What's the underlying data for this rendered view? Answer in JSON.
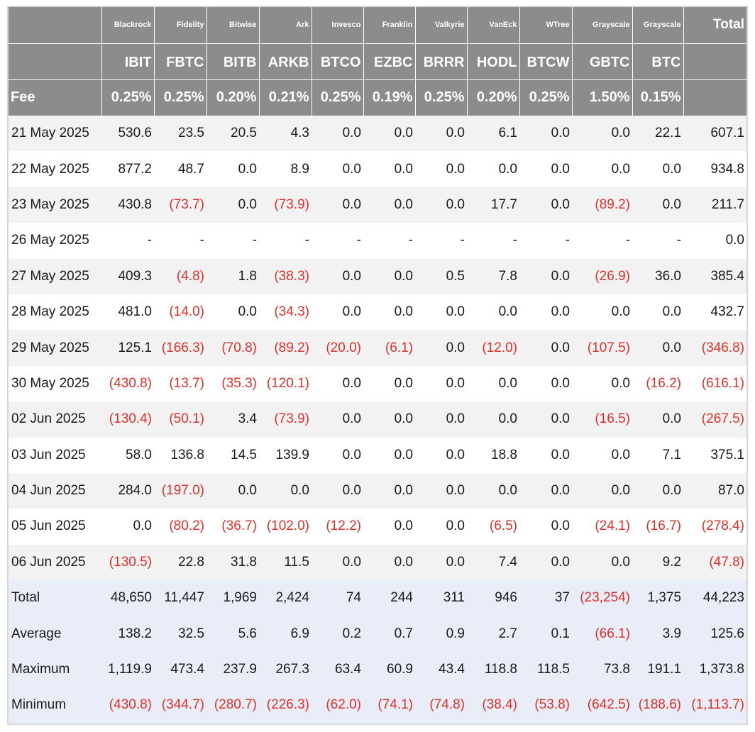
{
  "header": {
    "issuers": [
      "Blackrock",
      "Fidelity",
      "Bitwise",
      "Ark",
      "Invesco",
      "Franklin",
      "Valkyrie",
      "VanEck",
      "WTree",
      "Grayscale",
      "Grayscale"
    ],
    "total_label": "Total",
    "tickers": [
      "IBIT",
      "FBTC",
      "BITB",
      "ARKB",
      "BTCO",
      "EZBC",
      "BRRR",
      "HODL",
      "BTCW",
      "GBTC",
      "BTC"
    ],
    "fee_label": "Fee",
    "fees": [
      "0.25%",
      "0.25%",
      "0.20%",
      "0.21%",
      "0.25%",
      "0.19%",
      "0.25%",
      "0.20%",
      "0.25%",
      "1.50%",
      "0.15%"
    ]
  },
  "rows": [
    {
      "date": "21 May 2025",
      "values": [
        "530.6",
        "23.5",
        "20.5",
        "4.3",
        "0.0",
        "0.0",
        "0.0",
        "6.1",
        "0.0",
        "0.0",
        "22.1",
        "607.1"
      ]
    },
    {
      "date": "22 May 2025",
      "values": [
        "877.2",
        "48.7",
        "0.0",
        "8.9",
        "0.0",
        "0.0",
        "0.0",
        "0.0",
        "0.0",
        "0.0",
        "0.0",
        "934.8"
      ]
    },
    {
      "date": "23 May 2025",
      "values": [
        "430.8",
        "(73.7)",
        "0.0",
        "(73.9)",
        "0.0",
        "0.0",
        "0.0",
        "17.7",
        "0.0",
        "(89.2)",
        "0.0",
        "211.7"
      ]
    },
    {
      "date": "26 May 2025",
      "values": [
        "-",
        "-",
        "-",
        "-",
        "-",
        "-",
        "-",
        "-",
        "-",
        "-",
        "-",
        "0.0"
      ]
    },
    {
      "date": "27 May 2025",
      "values": [
        "409.3",
        "(4.8)",
        "1.8",
        "(38.3)",
        "0.0",
        "0.0",
        "0.5",
        "7.8",
        "0.0",
        "(26.9)",
        "36.0",
        "385.4"
      ]
    },
    {
      "date": "28 May 2025",
      "values": [
        "481.0",
        "(14.0)",
        "0.0",
        "(34.3)",
        "0.0",
        "0.0",
        "0.0",
        "0.0",
        "0.0",
        "0.0",
        "0.0",
        "432.7"
      ]
    },
    {
      "date": "29 May 2025",
      "values": [
        "125.1",
        "(166.3)",
        "(70.8)",
        "(89.2)",
        "(20.0)",
        "(6.1)",
        "0.0",
        "(12.0)",
        "0.0",
        "(107.5)",
        "0.0",
        "(346.8)"
      ]
    },
    {
      "date": "30 May 2025",
      "values": [
        "(430.8)",
        "(13.7)",
        "(35.3)",
        "(120.1)",
        "0.0",
        "0.0",
        "0.0",
        "0.0",
        "0.0",
        "0.0",
        "(16.2)",
        "(616.1)"
      ]
    },
    {
      "date": "02 Jun 2025",
      "values": [
        "(130.4)",
        "(50.1)",
        "3.4",
        "(73.9)",
        "0.0",
        "0.0",
        "0.0",
        "0.0",
        "0.0",
        "(16.5)",
        "0.0",
        "(267.5)"
      ]
    },
    {
      "date": "03 Jun 2025",
      "values": [
        "58.0",
        "136.8",
        "14.5",
        "139.9",
        "0.0",
        "0.0",
        "0.0",
        "18.8",
        "0.0",
        "0.0",
        "7.1",
        "375.1"
      ]
    },
    {
      "date": "04 Jun 2025",
      "values": [
        "284.0",
        "(197.0)",
        "0.0",
        "0.0",
        "0.0",
        "0.0",
        "0.0",
        "0.0",
        "0.0",
        "0.0",
        "0.0",
        "87.0"
      ]
    },
    {
      "date": "05 Jun 2025",
      "values": [
        "0.0",
        "(80.2)",
        "(36.7)",
        "(102.0)",
        "(12.2)",
        "0.0",
        "0.0",
        "(6.5)",
        "0.0",
        "(24.1)",
        "(16.7)",
        "(278.4)"
      ]
    },
    {
      "date": "06 Jun 2025",
      "values": [
        "(130.5)",
        "22.8",
        "31.8",
        "11.5",
        "0.0",
        "0.0",
        "0.0",
        "7.4",
        "0.0",
        "0.0",
        "9.2",
        "(47.8)"
      ]
    }
  ],
  "summary": [
    {
      "label": "Total",
      "values": [
        "48,650",
        "11,447",
        "1,969",
        "2,424",
        "74",
        "244",
        "311",
        "946",
        "37",
        "(23,254)",
        "1,375",
        "44,223"
      ]
    },
    {
      "label": "Average",
      "values": [
        "138.2",
        "32.5",
        "5.6",
        "6.9",
        "0.2",
        "0.7",
        "0.9",
        "2.7",
        "0.1",
        "(66.1)",
        "3.9",
        "125.6"
      ]
    },
    {
      "label": "Maximum",
      "values": [
        "1,119.9",
        "473.4",
        "237.9",
        "267.3",
        "63.4",
        "60.9",
        "43.4",
        "118.8",
        "118.5",
        "73.8",
        "191.1",
        "1,373.8"
      ]
    },
    {
      "label": "Minimum",
      "values": [
        "(430.8)",
        "(344.7)",
        "(280.7)",
        "(226.3)",
        "(62.0)",
        "(74.1)",
        "(74.8)",
        "(38.4)",
        "(53.8)",
        "(642.5)",
        "(188.6)",
        "(1,113.7)"
      ]
    }
  ],
  "colors": {
    "header_bg": "#8c8c8c",
    "header_text": "#ffffff",
    "negative": "#e0302a",
    "alt_row": "#f2f2f2",
    "summary_bg": "#e9edf8"
  }
}
